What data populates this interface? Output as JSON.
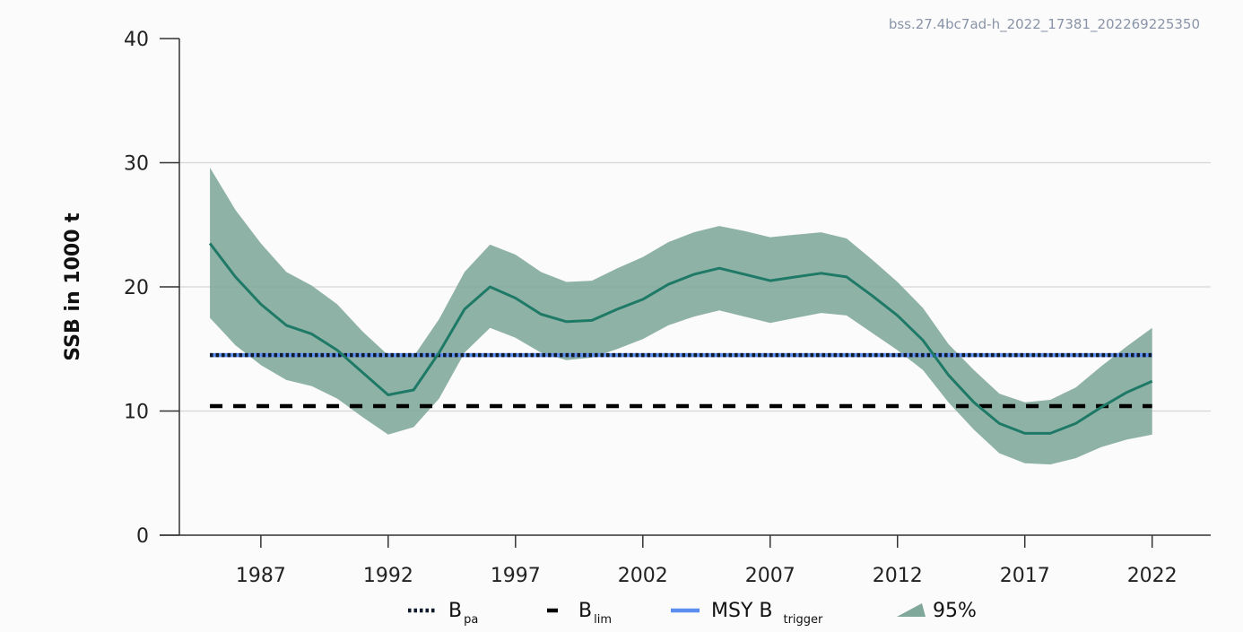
{
  "chart_data": {
    "type": "line",
    "watermark": "bss.27.4bc7ad-h_2022_17381_202269225350",
    "ylabel": "SSB in 1000 t",
    "xlabel": "",
    "xlim": [
      1983.8,
      2024.3
    ],
    "ylim": [
      0,
      40
    ],
    "yticks": [
      0,
      10,
      20,
      30,
      40
    ],
    "xticks": [
      1987,
      1992,
      1997,
      2002,
      2007,
      2012,
      2017,
      2022
    ],
    "grid": "horizontal",
    "x": [
      1985,
      1986,
      1987,
      1988,
      1989,
      1990,
      1991,
      1992,
      1993,
      1994,
      1995,
      1996,
      1997,
      1998,
      1999,
      2000,
      2001,
      2002,
      2003,
      2004,
      2005,
      2006,
      2007,
      2008,
      2009,
      2010,
      2011,
      2012,
      2013,
      2014,
      2015,
      2016,
      2017,
      2018,
      2019,
      2020,
      2021,
      2022
    ],
    "series": [
      {
        "role": "ssb",
        "color": "#1e7a66",
        "values": [
          23.5,
          20.8,
          18.6,
          16.9,
          16.2,
          14.9,
          13.1,
          11.3,
          11.7,
          14.7,
          18.2,
          20.0,
          19.1,
          17.8,
          17.2,
          17.3,
          18.2,
          19.0,
          20.2,
          21.0,
          21.5,
          21.0,
          20.5,
          20.8,
          21.1,
          20.8,
          19.3,
          17.7,
          15.7,
          12.9,
          10.7,
          9.0,
          8.2,
          8.2,
          9.0,
          10.3,
          11.5,
          12.4
        ]
      }
    ],
    "band": {
      "color": "#7fa79a",
      "lower": [
        17.5,
        15.3,
        13.7,
        12.5,
        12.0,
        11.0,
        9.5,
        8.1,
        8.7,
        11.0,
        14.7,
        16.7,
        15.9,
        14.7,
        14.1,
        14.3,
        15.0,
        15.8,
        16.9,
        17.6,
        18.1,
        17.6,
        17.1,
        17.5,
        17.9,
        17.7,
        16.3,
        14.9,
        13.3,
        10.7,
        8.5,
        6.6,
        5.8,
        5.7,
        6.2,
        7.1,
        7.7,
        8.1
      ],
      "upper": [
        29.6,
        26.2,
        23.5,
        21.2,
        20.1,
        18.6,
        16.4,
        14.5,
        14.4,
        17.4,
        21.2,
        23.4,
        22.6,
        21.2,
        20.4,
        20.5,
        21.5,
        22.4,
        23.6,
        24.4,
        24.9,
        24.5,
        24.0,
        24.2,
        24.4,
        23.9,
        22.2,
        20.4,
        18.3,
        15.4,
        13.3,
        11.4,
        10.7,
        10.9,
        11.9,
        13.6,
        15.2,
        16.7
      ]
    },
    "reference_lines": [
      {
        "key": "msy",
        "y": 14.5,
        "color": "#5b8ef0",
        "style": "solid"
      },
      {
        "key": "bpa",
        "y": 14.5,
        "color": "#0e1a2b",
        "style": "dotted"
      },
      {
        "key": "blim",
        "y": 10.4,
        "color": "#000000",
        "style": "dashed"
      }
    ],
    "legend": {
      "placement": "bottom",
      "items": [
        {
          "key": "bpa",
          "main": "B",
          "sub": "pa",
          "style": "dotted",
          "color": "#0e1a2b"
        },
        {
          "key": "blim",
          "main": "B",
          "sub": "lim",
          "style": "dashed",
          "color": "#000000"
        },
        {
          "key": "msy",
          "main": "MSY B",
          "sub": "trigger",
          "style": "solid",
          "color": "#5b8ef0"
        },
        {
          "key": "band",
          "main": "95%",
          "sub": "",
          "style": "band",
          "color": "#7fa79a"
        }
      ]
    }
  }
}
